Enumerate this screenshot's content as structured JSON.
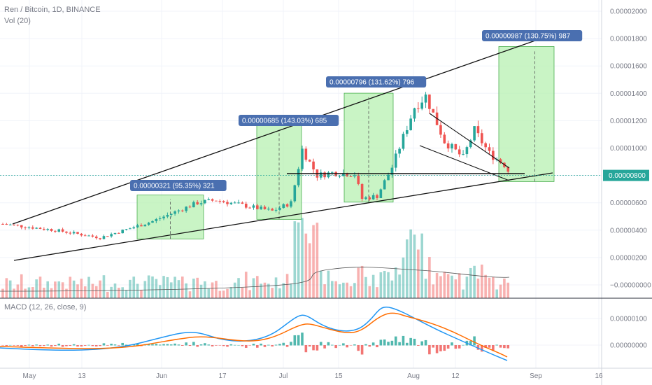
{
  "header": {
    "symbol": "Ren / Bitcoin, 1D, BINANCE",
    "volume": "Vol (20)",
    "macd": "MACD (12, 26, close, 9)"
  },
  "price_axis": {
    "ticks": [
      "0.00002000",
      "0.00001800",
      "0.00001600",
      "0.00001400",
      "0.00001200",
      "0.00001000",
      "0.00000800",
      "0.00000600",
      "0.00000400",
      "0.00000200",
      "0.00000000"
    ],
    "current_label": "0.00000800",
    "current_color": "#26a69a"
  },
  "macd_axis": {
    "ticks": [
      "0.00000100",
      "0.00000000"
    ]
  },
  "time_axis": {
    "ticks": [
      "May",
      "13",
      "Jun",
      "17",
      "Jul",
      "15",
      "Aug",
      "12",
      "Sep",
      "16"
    ]
  },
  "callouts": [
    {
      "text": "0.00000321 (95.35%) 321"
    },
    {
      "text": "0.00000685 (143.03%) 685"
    },
    {
      "text": "0.00000796 (131.62%) 796"
    },
    {
      "text": "0.00000987 (130.75%) 987"
    }
  ],
  "colors": {
    "up": "#26a69a",
    "down": "#ef5350",
    "measure_fill": "#b7f0b1",
    "callout_bg": "#4a6fb0",
    "macd_line": "#2196f3",
    "signal_line": "#ff6d00"
  },
  "chart_data": [
    {
      "type": "candlestick",
      "title": "Ren / Bitcoin, 1D, BINANCE",
      "x_range": [
        "2019-04-29",
        "2019-09-20"
      ],
      "ylim": [
        0,
        2e-05
      ],
      "close_samples": [
        {
          "date": "2019-04-29",
          "close": 4.45e-06
        },
        {
          "date": "2019-05-13",
          "close": 3.95e-06
        },
        {
          "date": "2019-05-27",
          "close": 3.6e-06
        },
        {
          "date": "2019-06-03",
          "close": 4.7e-06
        },
        {
          "date": "2019-06-14",
          "close": 6.2e-06
        },
        {
          "date": "2019-06-28",
          "close": 5.6e-06
        },
        {
          "date": "2019-07-01",
          "close": 1e-05
        },
        {
          "date": "2019-07-15",
          "close": 6.3e-06
        },
        {
          "date": "2019-07-26",
          "close": 1.38e-05
        },
        {
          "date": "2019-08-05",
          "close": 1.15e-05
        },
        {
          "date": "2019-08-24",
          "close": 7.9e-06
        }
      ],
      "measures": [
        {
          "from": 3.36e-06,
          "to": 6.57e-06,
          "label": "0.00000321 (95.35%) 321"
        },
        {
          "from": 4.79e-06,
          "to": 1.164e-05,
          "label": "0.00000685 (143.03%) 685"
        },
        {
          "from": 6.05e-06,
          "to": 1.401e-05,
          "label": "0.00000796 (131.62%) 796"
        },
        {
          "from": 7.55e-06,
          "to": 1.742e-05,
          "label": "0.00000987 (130.75%) 987"
        }
      ],
      "current_price": 8e-06
    },
    {
      "type": "bar",
      "title": "Vol (20)"
    },
    {
      "type": "line",
      "title": "MACD (12, 26, close, 9)",
      "ylim": [
        -1e-06,
        1.5e-06
      ]
    }
  ]
}
